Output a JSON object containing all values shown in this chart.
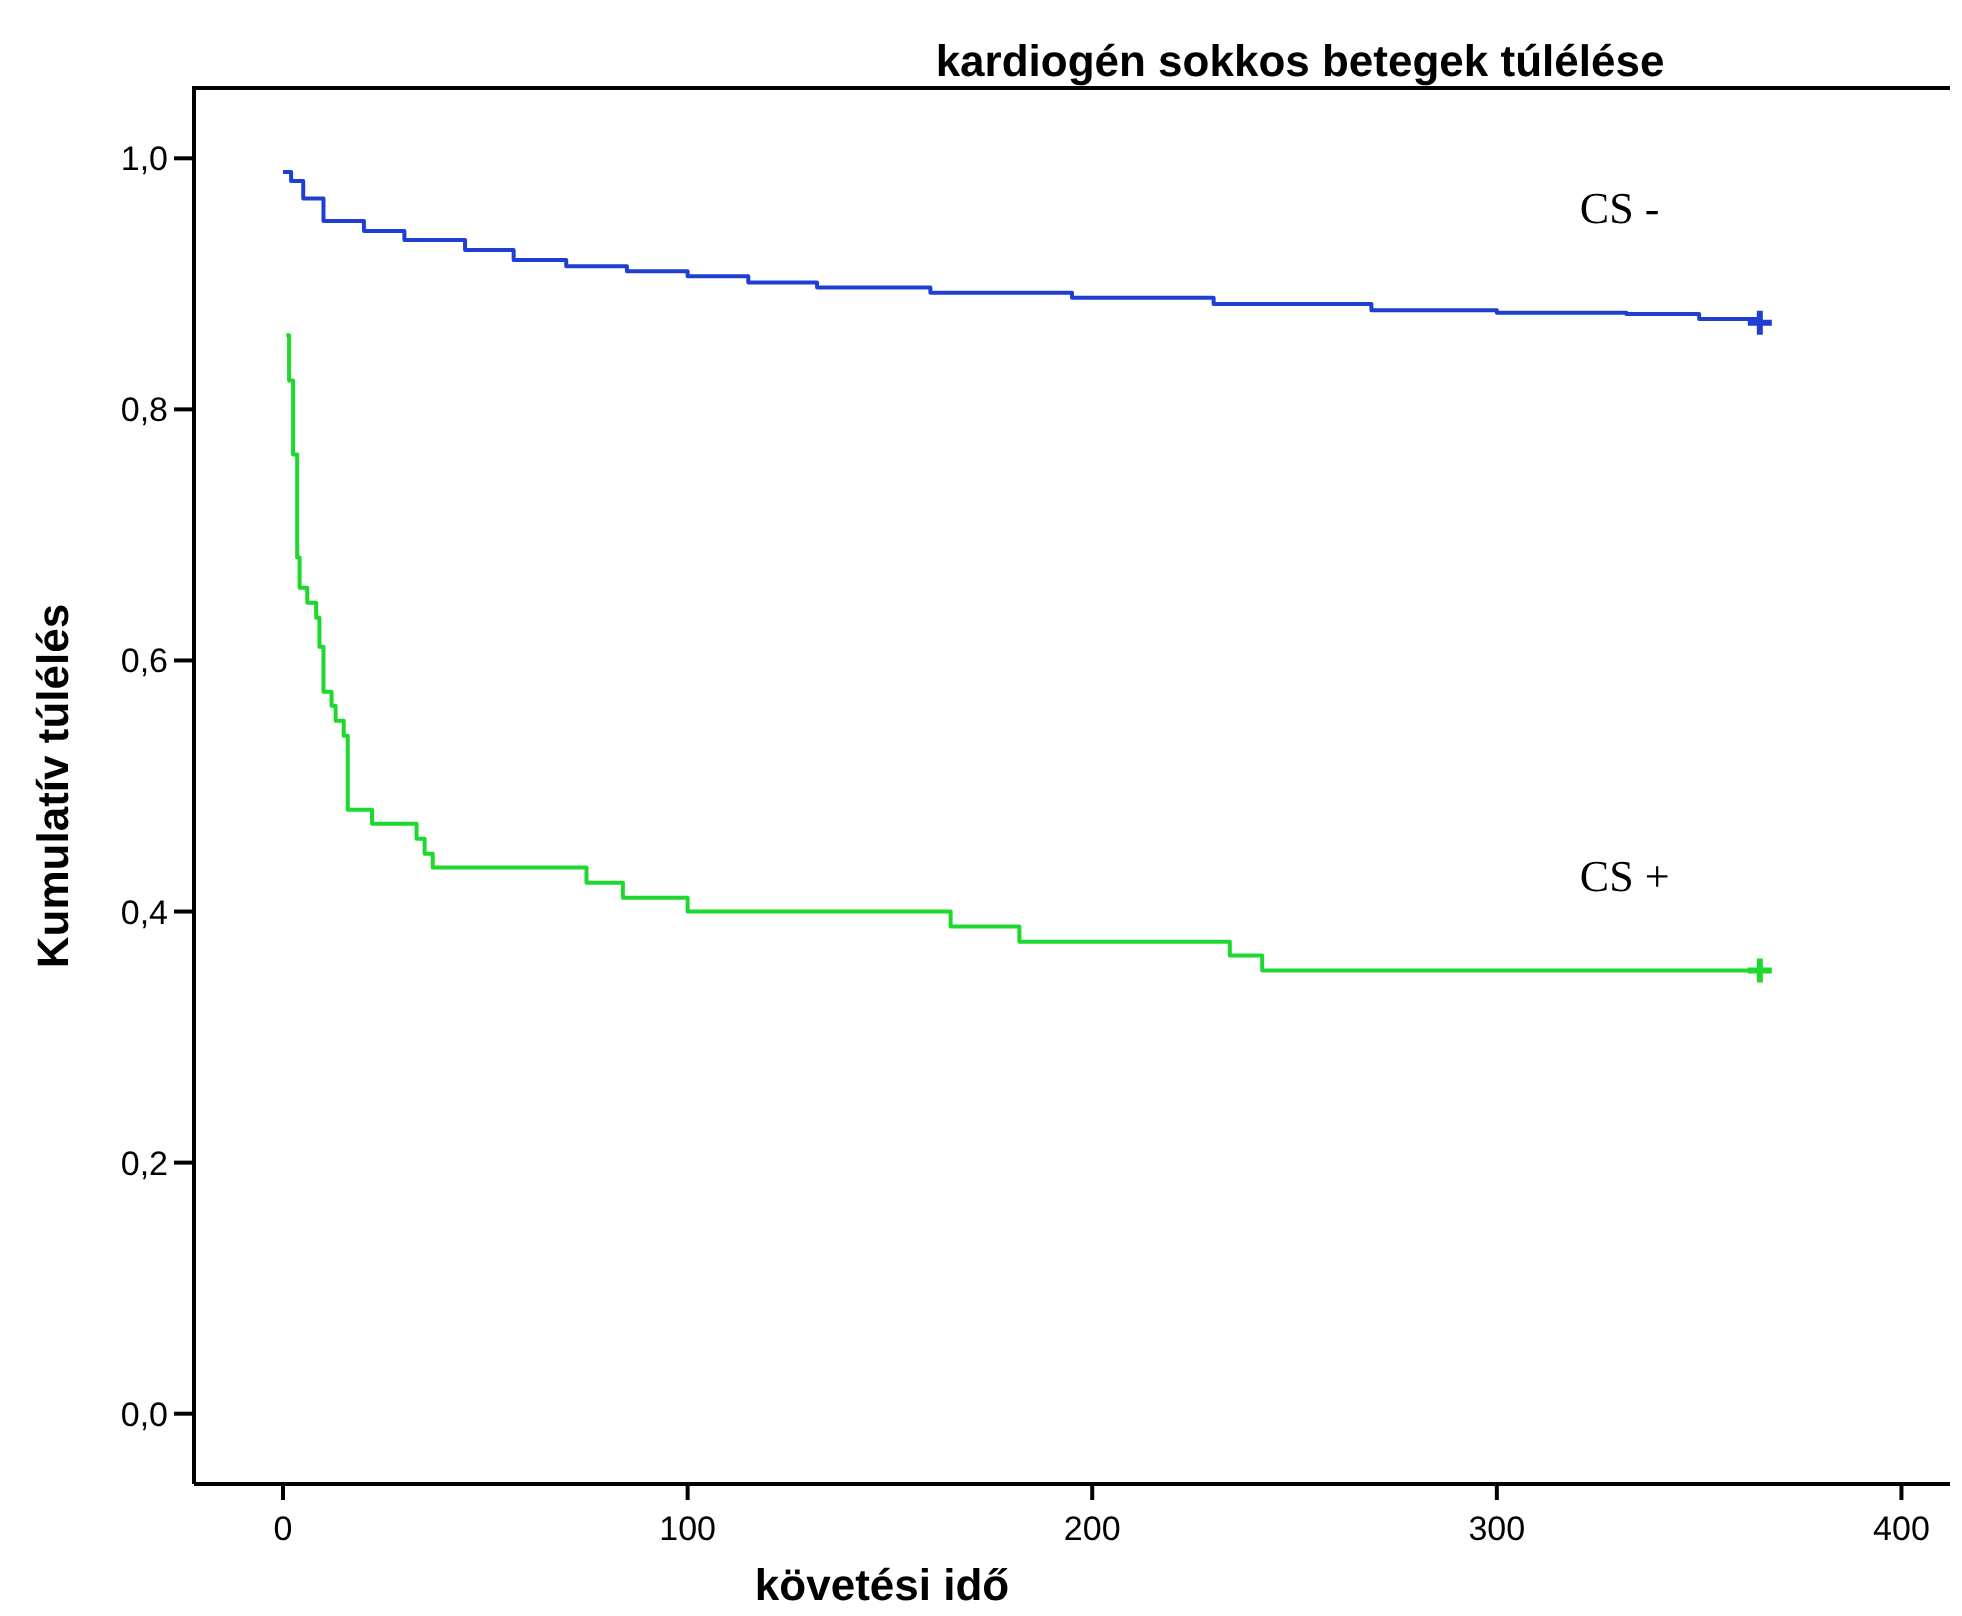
{
  "chart_data": {
    "type": "step",
    "title": "kardiogén sokkos betegek túlélése",
    "xlabel": "követési idő",
    "ylabel": "Kumulatív túlélés",
    "xlim": [
      -22,
      412
    ],
    "ylim": [
      -0.056,
      1.056
    ],
    "xticks": [
      0,
      100,
      200,
      300,
      400
    ],
    "yticks": [
      {
        "value": 0,
        "label": "0,0"
      },
      {
        "value": 0.2,
        "label": "0,2"
      },
      {
        "value": 0.4,
        "label": "0,4"
      },
      {
        "value": 0.6,
        "label": "0,6"
      },
      {
        "value": 0.8,
        "label": "0,8"
      },
      {
        "value": 1,
        "label": "1,0"
      }
    ],
    "grid": false,
    "series": [
      {
        "name": "CS -",
        "color": "#1f3fd0",
        "x": [
          0,
          2,
          5,
          10,
          20,
          30,
          45,
          57,
          70,
          85,
          100,
          115,
          132,
          160,
          195,
          230,
          269,
          300,
          332,
          350,
          365
        ],
        "values": [
          0.989,
          0.982,
          0.968,
          0.95,
          0.942,
          0.935,
          0.927,
          0.919,
          0.914,
          0.91,
          0.906,
          0.901,
          0.897,
          0.893,
          0.889,
          0.884,
          0.879,
          0.877,
          0.876,
          0.872,
          0.869
        ]
      },
      {
        "type": "scatter",
        "color": "#1f3fd0",
        "marker": "cross",
        "x": [
          365
        ],
        "values": [
          0.869
        ]
      },
      {
        "name": "CS +",
        "color": "#1ed82e",
        "x": [
          0.8,
          1.5,
          2.5,
          3.5,
          4.1,
          6,
          8.2,
          9,
          10,
          12,
          13,
          15,
          16,
          22,
          33,
          35,
          37,
          75,
          84,
          100,
          165,
          182,
          234,
          242,
          365
        ],
        "values": [
          0.859,
          0.823,
          0.764,
          0.682,
          0.658,
          0.646,
          0.634,
          0.611,
          0.575,
          0.564,
          0.552,
          0.54,
          0.481,
          0.47,
          0.458,
          0.446,
          0.435,
          0.423,
          0.411,
          0.4,
          0.388,
          0.376,
          0.365,
          0.353,
          0.353
        ]
      },
      {
        "type": "scatter",
        "color": "#1ed82e",
        "marker": "cross",
        "x": [
          365
        ],
        "values": [
          0.353
        ]
      }
    ]
  }
}
